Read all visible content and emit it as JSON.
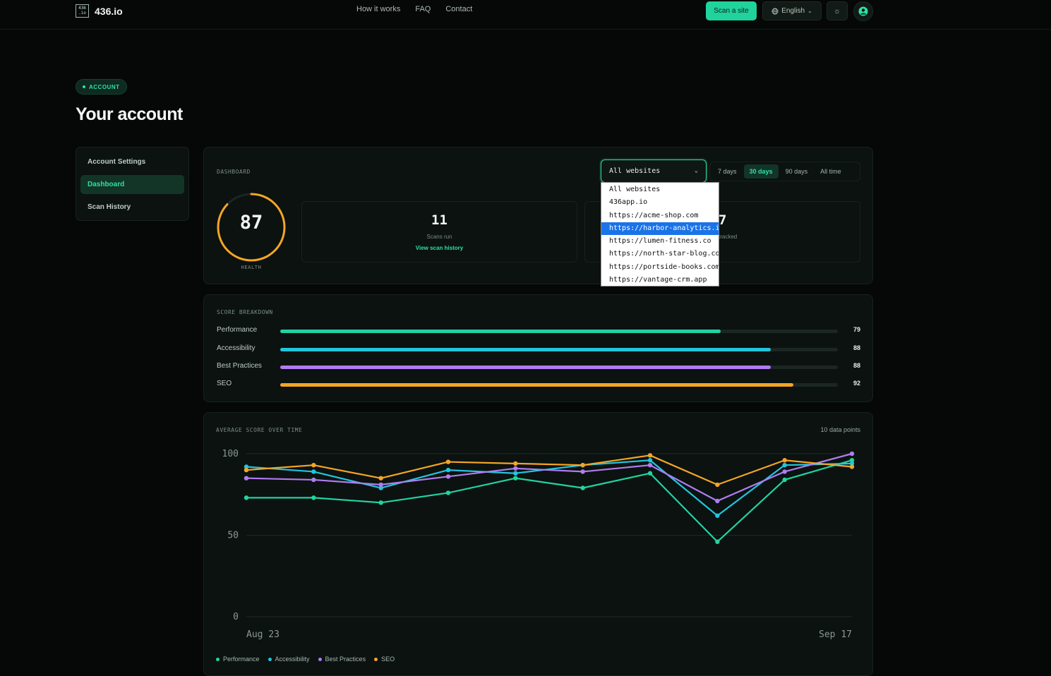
{
  "header": {
    "logo_box": "436\n.io",
    "logo_text": "436.io",
    "nav": [
      "How it works",
      "FAQ",
      "Contact"
    ],
    "scan_button": "Scan a site",
    "language": "English",
    "theme_icon": "sun-icon",
    "avatar_icon": "user-icon"
  },
  "page": {
    "pill": "ACCOUNT",
    "title": "Your account"
  },
  "sidebar": {
    "items": [
      {
        "label": "Account Settings",
        "active": false
      },
      {
        "label": "Dashboard",
        "active": true
      },
      {
        "label": "Scan History",
        "active": false
      }
    ]
  },
  "dashboard": {
    "label": "DASHBOARD",
    "health": {
      "value": 87,
      "label": "HEALTH",
      "color": "#f5a524"
    },
    "scans": {
      "value": "11",
      "label": "Scans run",
      "link": "View scan history"
    },
    "tracked": {
      "value": "7",
      "label": "tracked"
    },
    "select": {
      "value": "All websites"
    },
    "ranges": [
      {
        "label": "7 days",
        "active": false
      },
      {
        "label": "30 days",
        "active": true
      },
      {
        "label": "90 days",
        "active": false
      },
      {
        "label": "All time",
        "active": false
      }
    ],
    "dropdown": {
      "options": [
        "All websites",
        "436app.io",
        "https://acme-shop.com",
        "https://harbor-analytics.io",
        "https://lumen-fitness.co",
        "https://north-star-blog.com",
        "https://portside-books.com",
        "https://vantage-crm.app"
      ],
      "highlighted": 3
    }
  },
  "score_breakdown": {
    "label": "SCORE BREAKDOWN",
    "rows": [
      {
        "name": "Performance",
        "value": 79,
        "display": "79",
        "color": "#22d3a0"
      },
      {
        "name": "Accessibility",
        "value": 88,
        "display": "88",
        "color": "#22c5dd"
      },
      {
        "name": "Best Practices",
        "value": 88,
        "display": "88",
        "color": "#b07cf0"
      },
      {
        "name": "SEO",
        "value": 92,
        "display": "92",
        "color": "#f5a524"
      }
    ]
  },
  "chart": {
    "label": "AVERAGE SCORE OVER TIME",
    "points_note": "10 data points"
  },
  "chart_data": {
    "type": "line",
    "title": "AVERAGE SCORE OVER TIME",
    "xlabel": "",
    "ylabel": "",
    "x_tick_labels": [
      "Aug 23",
      "Sep 17"
    ],
    "y_ticks": [
      "100",
      "50",
      "0"
    ],
    "ylim": [
      0,
      100
    ],
    "grid": true,
    "legend_position": "bottom-left",
    "points": 10,
    "series": [
      {
        "name": "Performance",
        "color": "#22d3a0",
        "values": [
          73,
          73,
          70,
          76,
          85,
          79,
          88,
          46,
          84,
          96
        ]
      },
      {
        "name": "Accessibility",
        "color": "#22c5dd",
        "values": [
          92,
          89,
          79,
          90,
          88,
          93,
          96,
          62,
          93,
          94
        ]
      },
      {
        "name": "Best Practices",
        "color": "#b07cf0",
        "values": [
          85,
          84,
          81,
          86,
          91,
          89,
          93,
          71,
          89,
          100
        ]
      },
      {
        "name": "SEO",
        "color": "#f5a524",
        "values": [
          90,
          93,
          85,
          95,
          94,
          93,
          99,
          81,
          96,
          92
        ]
      }
    ]
  }
}
